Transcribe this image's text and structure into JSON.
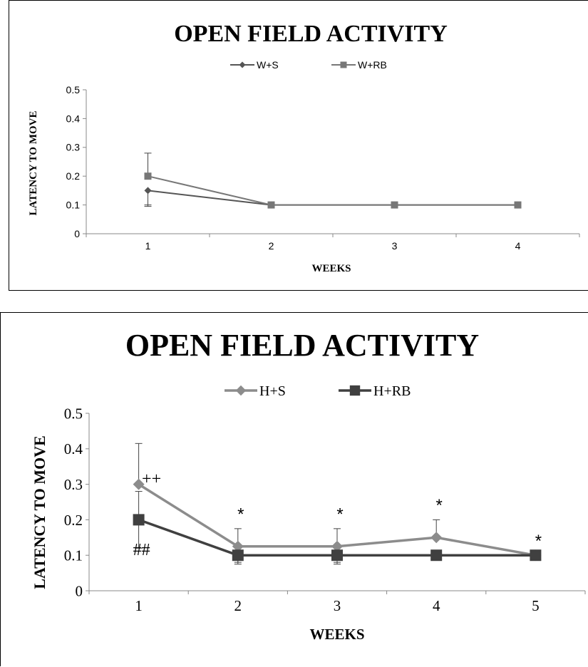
{
  "chart_data": [
    {
      "type": "line",
      "title": "OPEN FIELD ACTIVITY",
      "xlabel": "WEEKS",
      "ylabel": "LATENCY TO MOVE",
      "categories": [
        "1",
        "2",
        "3",
        "4"
      ],
      "y_ticks": [
        "0",
        "0.1",
        "0.2",
        "0.3",
        "0.4",
        "0.5"
      ],
      "ylim": [
        0,
        0.5
      ],
      "legend_position": "top",
      "grid": false,
      "series": [
        {
          "name": "W+S",
          "marker": "diamond",
          "color": "#555555",
          "values": [
            0.15,
            0.1,
            0.1,
            0.1
          ],
          "error_high": [
            0.1,
            null,
            null,
            null
          ],
          "error_low": [
            0.095,
            null,
            null,
            null
          ]
        },
        {
          "name": "W+RB",
          "marker": "square",
          "color": "#777777",
          "values": [
            0.2,
            0.1,
            0.1,
            0.1
          ],
          "error_high": [
            0.28,
            null,
            null,
            null
          ],
          "error_low": [
            null,
            null,
            null,
            null
          ]
        }
      ],
      "annotations": []
    },
    {
      "type": "line",
      "title": "OPEN FIELD ACTIVITY",
      "xlabel": "WEEKS",
      "ylabel": "LATENCY TO MOVE",
      "categories": [
        "1",
        "2",
        "3",
        "4",
        "5"
      ],
      "y_ticks": [
        "0",
        "0.1",
        "0.2",
        "0.3",
        "0.4",
        "0.5"
      ],
      "ylim": [
        0,
        0.5
      ],
      "legend_position": "top",
      "grid": false,
      "series": [
        {
          "name": "H+S",
          "marker": "diamond",
          "color": "#8c8c8c",
          "values": [
            0.3,
            0.125,
            0.125,
            0.15,
            0.1
          ],
          "error_high": [
            0.415,
            0.175,
            0.175,
            0.2,
            null
          ],
          "error_low": [
            null,
            0.075,
            0.075,
            null,
            null
          ]
        },
        {
          "name": "H+RB",
          "marker": "square",
          "color": "#404040",
          "values": [
            0.2,
            0.1,
            0.1,
            0.1,
            0.1
          ],
          "error_high": [
            0.28,
            null,
            null,
            null,
            null
          ],
          "error_low": [
            0.12,
            0.08,
            0.08,
            null,
            null
          ]
        }
      ],
      "annotations": [
        {
          "text": "++",
          "x": 1,
          "y": 0.3
        },
        {
          "text": "##",
          "x": 1,
          "y": 0.1
        },
        {
          "text": "*",
          "x": 2,
          "y": 0.2
        },
        {
          "text": "*",
          "x": 3,
          "y": 0.2
        },
        {
          "text": "*",
          "x": 4,
          "y": 0.225
        },
        {
          "text": "*",
          "x": 5,
          "y": 0.125
        }
      ]
    }
  ]
}
